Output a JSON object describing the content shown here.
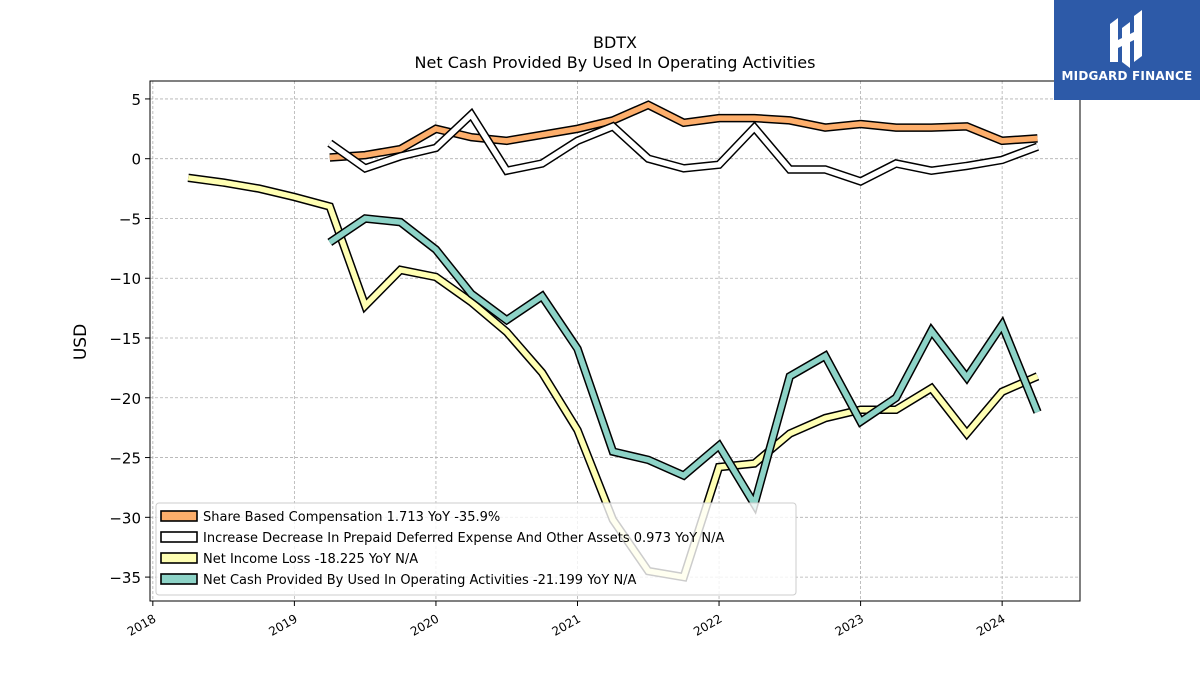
{
  "brand": {
    "name": "MIDGARD FINANCE",
    "bg_color": "#2d5aa8"
  },
  "chart_data": {
    "type": "line",
    "title": "BDTX",
    "subtitle": "Net Cash Provided By Used In Operating Activities",
    "ylabel": "USD",
    "xlabel": "",
    "xlim": [
      2017.98,
      2024.55
    ],
    "ylim": [
      -37,
      6.5
    ],
    "x_ticks": [
      2018,
      2019,
      2020,
      2021,
      2022,
      2023,
      2024
    ],
    "x_tick_labels": [
      "2018",
      "2019",
      "2020",
      "2021",
      "2022",
      "2023",
      "2024"
    ],
    "y_ticks": [
      5,
      0,
      -5,
      -10,
      -15,
      -20,
      -25,
      -30,
      -35
    ],
    "y_tick_labels": [
      "5",
      "0",
      "−5",
      "−10",
      "−15",
      "−20",
      "−25",
      "−30",
      "−35"
    ],
    "grid": true,
    "legend_position": "lower-left",
    "series": [
      {
        "name": "Share Based Compensation",
        "legend": "Share Based Compensation  1.713 YoY -35.9%",
        "color": "#fdae6b",
        "x": [
          2019.25,
          2019.5,
          2019.75,
          2020.0,
          2020.25,
          2020.5,
          2020.75,
          2021.0,
          2021.25,
          2021.5,
          2021.75,
          2022.0,
          2022.25,
          2022.5,
          2022.75,
          2023.0,
          2023.25,
          2023.5,
          2023.75,
          2024.0,
          2024.25
        ],
        "y": [
          0.1,
          0.3,
          0.8,
          2.5,
          1.8,
          1.5,
          2.0,
          2.5,
          3.2,
          4.5,
          3.0,
          3.4,
          3.4,
          3.2,
          2.6,
          2.9,
          2.6,
          2.6,
          2.7,
          1.5,
          1.7
        ]
      },
      {
        "name": "Increase Decrease In Prepaid Deferred Expense And Other Assets",
        "legend": "Increase Decrease In Prepaid Deferred Expense And Other Assets  0.973 YoY N/A",
        "color": "#ffffff",
        "x": [
          2019.25,
          2019.5,
          2019.75,
          2020.0,
          2020.25,
          2020.5,
          2020.75,
          2021.0,
          2021.25,
          2021.5,
          2021.75,
          2022.0,
          2022.25,
          2022.5,
          2022.75,
          2023.0,
          2023.25,
          2023.5,
          2023.75,
          2024.0,
          2024.25
        ],
        "y": [
          1.3,
          -0.8,
          0.2,
          0.9,
          3.7,
          -1.0,
          -0.4,
          1.5,
          2.7,
          0.0,
          -0.8,
          -0.5,
          2.6,
          -0.9,
          -0.9,
          -1.9,
          -0.4,
          -1.0,
          -0.6,
          -0.1,
          1.0
        ]
      },
      {
        "name": "Net Income Loss",
        "legend": "Net Income Loss  -18.225 YoY N/A",
        "color": "#ffffb3",
        "x": [
          2018.25,
          2018.5,
          2018.75,
          2019.0,
          2019.25,
          2019.5,
          2019.75,
          2020.0,
          2020.25,
          2020.5,
          2020.75,
          2021.0,
          2021.25,
          2021.5,
          2021.75,
          2022.0,
          2022.25,
          2022.5,
          2022.75,
          2023.0,
          2023.25,
          2023.5,
          2023.75,
          2024.0,
          2024.25
        ],
        "y": [
          -1.6,
          -2.0,
          -2.5,
          -3.2,
          -4.0,
          -12.3,
          -9.3,
          -9.9,
          -12.0,
          -14.5,
          -17.9,
          -22.7,
          -30.2,
          -34.5,
          -35.0,
          -25.8,
          -25.5,
          -23.0,
          -21.7,
          -21.0,
          -21.0,
          -19.2,
          -23.0,
          -19.5,
          -18.2
        ]
      },
      {
        "name": "Net Cash Provided By Used In Operating Activities",
        "legend": "Net Cash Provided By Used In Operating Activities  -21.199 YoY N/A",
        "color": "#8dd3c7",
        "x": [
          2019.25,
          2019.5,
          2019.75,
          2020.0,
          2020.25,
          2020.5,
          2020.75,
          2021.0,
          2021.25,
          2021.5,
          2021.75,
          2022.0,
          2022.25,
          2022.5,
          2022.75,
          2023.0,
          2023.25,
          2023.5,
          2023.75,
          2024.0,
          2024.25
        ],
        "y": [
          -7.0,
          -5.0,
          -5.3,
          -7.6,
          -11.3,
          -13.5,
          -11.5,
          -15.9,
          -24.5,
          -25.2,
          -26.5,
          -24.0,
          -28.9,
          -18.2,
          -16.5,
          -22.0,
          -20.0,
          -14.4,
          -18.3,
          -13.9,
          -21.2
        ]
      }
    ]
  }
}
